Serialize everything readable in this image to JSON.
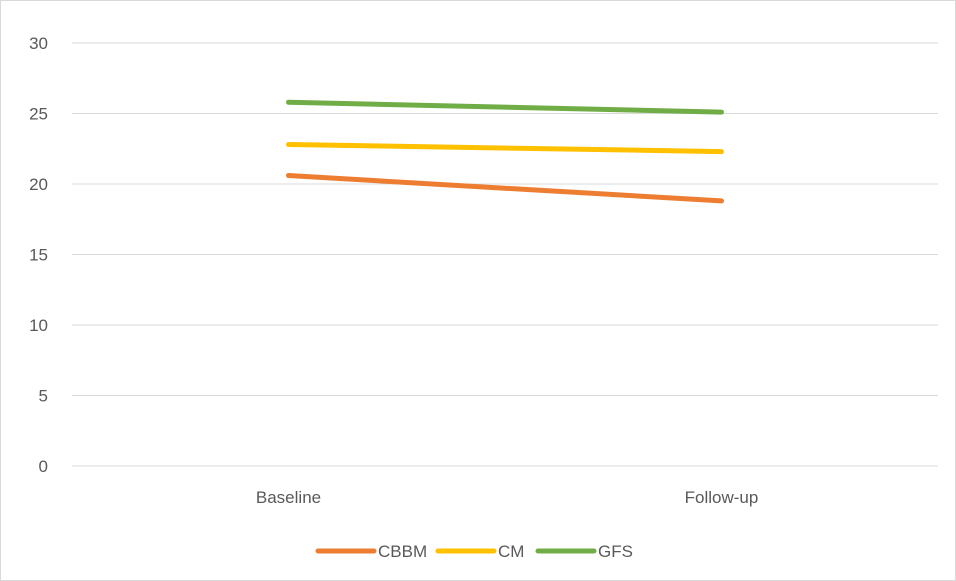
{
  "chart_data": {
    "type": "line",
    "title": "",
    "xlabel": "",
    "ylabel": "",
    "categories": [
      "Baseline",
      "Follow-up"
    ],
    "ylim": [
      0,
      30
    ],
    "yticks": [
      0,
      5,
      10,
      15,
      20,
      25,
      30
    ],
    "grid": true,
    "legend": "bottom",
    "series": [
      {
        "name": "CBBM",
        "color": "#ED7D31",
        "values": [
          20.6,
          18.8
        ]
      },
      {
        "name": "CM",
        "color": "#FFC000",
        "values": [
          22.8,
          22.3
        ]
      },
      {
        "name": "GFS",
        "color": "#70AD47",
        "values": [
          25.8,
          25.1
        ]
      }
    ]
  }
}
